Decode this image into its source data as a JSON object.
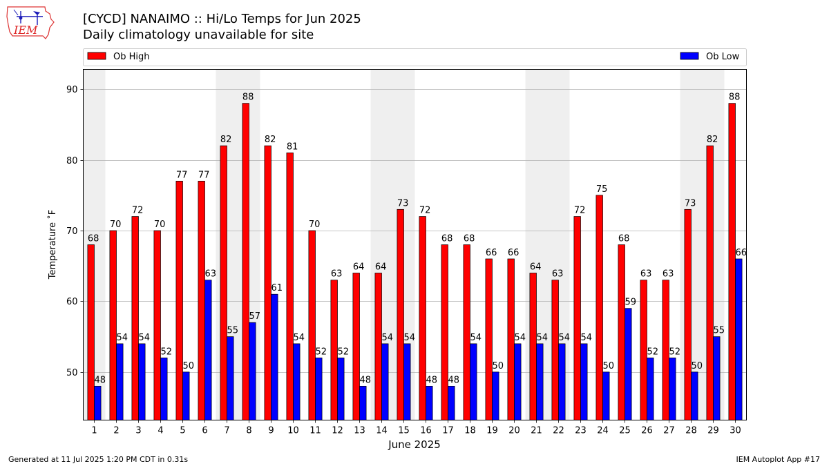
{
  "header": {
    "title": "[CYCD] NANAIMO :: Hi/Lo Temps for Jun 2025",
    "subtitle": "Daily climatology unavailable for site",
    "logo_text": "IEM"
  },
  "footer": {
    "generated": "Generated at 11 Jul 2025 1:20 PM CDT in 0.31s",
    "app": "IEM Autoplot App #17"
  },
  "chart_data": {
    "type": "bar",
    "title": "[CYCD] NANAIMO :: Hi/Lo Temps for Jun 2025",
    "subtitle": "Daily climatology unavailable for site",
    "xlabel": "June 2025",
    "ylabel": "Temperature ˚F",
    "categories": [
      "1",
      "2",
      "3",
      "4",
      "5",
      "6",
      "7",
      "8",
      "9",
      "10",
      "11",
      "12",
      "13",
      "14",
      "15",
      "16",
      "17",
      "18",
      "19",
      "20",
      "21",
      "22",
      "23",
      "24",
      "25",
      "26",
      "27",
      "28",
      "29",
      "30"
    ],
    "series": [
      {
        "name": "Ob High",
        "color": "#ff0000",
        "values": [
          68,
          70,
          72,
          70,
          77,
          77,
          82,
          88,
          82,
          81,
          70,
          63,
          64,
          64,
          73,
          72,
          68,
          68,
          66,
          66,
          64,
          63,
          72,
          75,
          68,
          63,
          63,
          73,
          82,
          88
        ],
        "labels": [
          "68",
          "70",
          "72",
          "70",
          "77",
          "77",
          "82",
          "88",
          "82",
          "81",
          "70",
          "63",
          "64",
          "64",
          "73",
          "72",
          "68",
          "68",
          "66",
          "66",
          "64",
          "63",
          "72",
          "75",
          "68",
          "63",
          "63",
          "73",
          "82",
          "88"
        ]
      },
      {
        "name": "Ob Low",
        "color": "#0000ff",
        "values": [
          48,
          54,
          54,
          52,
          50,
          63,
          55,
          57,
          61,
          54,
          52,
          52,
          48,
          54,
          54,
          48,
          48,
          54,
          50,
          54,
          54,
          54,
          54,
          50,
          59,
          52,
          52,
          50,
          55,
          66
        ],
        "labels": [
          "48",
          "54",
          "54",
          "52",
          "50",
          "63",
          "55",
          "57",
          "61",
          "54",
          "52",
          "52",
          "48",
          "54",
          "54",
          "48",
          "48",
          "54",
          "50",
          "54",
          "54",
          "54",
          "54",
          "50",
          "59",
          "52",
          "52",
          "50",
          "55",
          "66"
        ]
      }
    ],
    "yticks": [
      50,
      60,
      70,
      80,
      90
    ],
    "ylim": [
      43.2,
      92.8
    ],
    "weekend_days": [
      1,
      7,
      8,
      14,
      15,
      21,
      22,
      28,
      29
    ],
    "weekend_shade_color": "#efefef",
    "grid": "horizontal",
    "legend": "top, spanning full width"
  }
}
